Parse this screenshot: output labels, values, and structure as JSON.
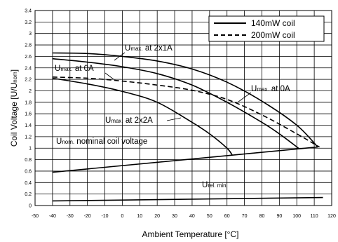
{
  "chart_data": {
    "type": "line",
    "title": "",
    "xlabel": "Ambient Temperature [°C]",
    "ylabel": "Coil Voltage [U/U",
    "ylabel_sub": "nom",
    "ylabel_suffix": "]",
    "xlim": [
      -50,
      120
    ],
    "ylim": [
      0,
      3.4
    ],
    "x_ticks": [
      -50,
      -40,
      -30,
      -20,
      -10,
      0,
      10,
      20,
      30,
      40,
      50,
      60,
      70,
      80,
      90,
      100,
      110,
      120
    ],
    "y_ticks": [
      0,
      0.2,
      0.4,
      0.6,
      0.8,
      1,
      1.2,
      1.4,
      1.6,
      1.8,
      2,
      2.2,
      2.4,
      2.6,
      2.8,
      3,
      3.2,
      3.4
    ],
    "grid": true,
    "legend": {
      "position": "top-right",
      "entries": [
        {
          "label": "140mW coil",
          "style": "solid"
        },
        {
          "label": "200mW coil",
          "style": "dashed"
        }
      ]
    },
    "series": [
      {
        "name": "140mW coil",
        "style": "solid",
        "x": [
          -40,
          -20,
          0,
          20,
          40,
          60,
          80,
          100,
          112
        ],
        "y": [
          2.66,
          2.65,
          2.6,
          2.52,
          2.38,
          2.15,
          1.82,
          1.4,
          1.02
        ]
      },
      {
        "name": "140mW coil",
        "style": "solid",
        "x": [
          -40,
          -20,
          0,
          20,
          40,
          60,
          80,
          90,
          101
        ],
        "y": [
          2.56,
          2.5,
          2.42,
          2.3,
          2.1,
          1.8,
          1.45,
          1.25,
          1.0
        ]
      },
      {
        "name": "140mW coil",
        "style": "solid",
        "x": [
          -40,
          -20,
          0,
          20,
          40,
          50,
          60,
          63
        ],
        "y": [
          2.22,
          2.12,
          1.99,
          1.8,
          1.45,
          1.25,
          1.0,
          0.88
        ]
      },
      {
        "name": "200mW coil",
        "style": "dashed",
        "x": [
          -40,
          -20,
          0,
          20,
          40,
          60,
          80,
          100,
          113
        ],
        "y": [
          2.24,
          2.22,
          2.17,
          2.1,
          2.01,
          1.85,
          1.58,
          1.25,
          1.02
        ]
      },
      {
        "name": "",
        "style": "solid",
        "x": [
          -40,
          112
        ],
        "y": [
          0.58,
          1.02
        ]
      },
      {
        "name": "",
        "style": "solid",
        "x": [
          -40,
          115
        ],
        "y": [
          0.08,
          0.14
        ]
      }
    ],
    "annotations": {
      "umax_2x1A": {
        "main": "U",
        "sub": "max.",
        "rest": " at 2x1A"
      },
      "umax_0A_left": {
        "main": "U",
        "sub": "max.",
        "rest": " at 0A"
      },
      "umax_0A_right": {
        "main": "U",
        "sub": "max.",
        "rest": " at 0A"
      },
      "umax_2x2A": {
        "main": "U",
        "sub": "max.",
        "rest": " at 2x2A"
      },
      "unom": {
        "main": "U",
        "sub": "nom.",
        "rest": " nominal coil voltage"
      },
      "urel": {
        "main": "U",
        "sub": "rel. min.",
        "rest": ""
      }
    }
  }
}
